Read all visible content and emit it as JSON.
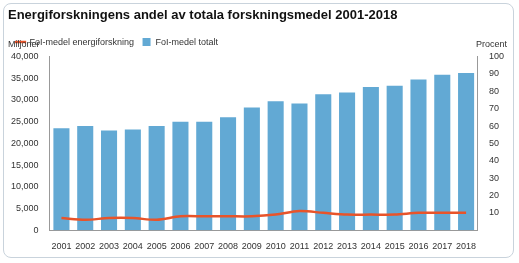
{
  "chart_data": {
    "type": "bar",
    "title": "Energiforskningens andel av totala forskningsmedel 2001-2018",
    "ylabel": "Miljoner",
    "y2label": "Procent",
    "categories": [
      "2001",
      "2002",
      "2003",
      "2004",
      "2005",
      "2006",
      "2007",
      "2008",
      "2009",
      "2010",
      "2011",
      "2012",
      "2013",
      "2014",
      "2015",
      "2016",
      "2017",
      "2018"
    ],
    "series": [
      {
        "name": "FoI-medel totalt",
        "type": "bar",
        "color": "#62a9d4",
        "axis": "y",
        "values": [
          23500,
          24000,
          23000,
          23200,
          24000,
          25000,
          25000,
          26000,
          28300,
          29700,
          29200,
          31300,
          31700,
          33000,
          33300,
          34700,
          35800,
          36200
        ]
      },
      {
        "name": "FoI-medel energiforskning",
        "type": "line",
        "color": "#e8542a",
        "axis": "y2",
        "values": [
          7,
          6,
          7,
          7,
          6,
          8,
          8,
          8,
          8,
          9,
          11,
          10,
          9,
          9,
          9,
          10,
          10,
          10
        ]
      }
    ],
    "ylim": [
      0,
      40000
    ],
    "yticks": [
      0,
      5000,
      10000,
      15000,
      20000,
      25000,
      30000,
      35000,
      40000
    ],
    "y2lim": [
      0,
      100
    ],
    "y2ticks": [
      10,
      20,
      30,
      40,
      50,
      60,
      70,
      80,
      90,
      100
    ],
    "grid": false,
    "legend": "top-left"
  }
}
